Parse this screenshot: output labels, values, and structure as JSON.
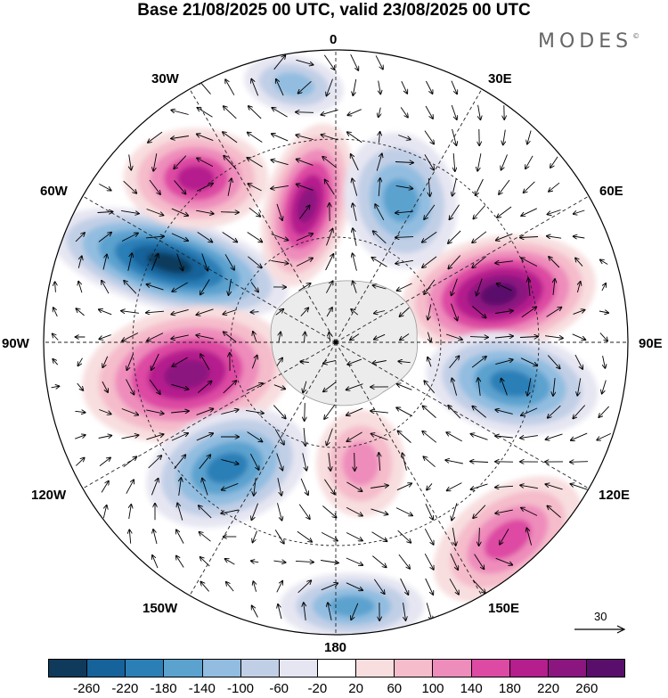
{
  "title": "Base 21/08/2025 00 UTC, valid 23/08/2025 00 UTC",
  "brand": {
    "name": "MODES",
    "mark": "©"
  },
  "longitude_labels": {
    "lon_0": "0",
    "lon_30e": "30E",
    "lon_60e": "60E",
    "lon_90e": "90E",
    "lon_120e": "120E",
    "lon_150e": "150E",
    "lon_180": "180",
    "lon_150w": "150W",
    "lon_120w": "120W",
    "lon_90w": "90W",
    "lon_60w": "60W",
    "lon_30w": "30W"
  },
  "reference_vector": {
    "label": "30"
  },
  "colorbar": {
    "colors": [
      "#0f3a5c",
      "#16629a",
      "#2b7fb7",
      "#5ba2cf",
      "#92bde0",
      "#c1cfe6",
      "#e6e6f2",
      "#ffffff",
      "#f8dedf",
      "#f5bccb",
      "#ee8cbb",
      "#dd4aa3",
      "#b51e8d",
      "#8c1680",
      "#5a0e6b"
    ],
    "tick_labels": [
      "-260",
      "-220",
      "-180",
      "-140",
      "-100",
      "-60",
      "-20",
      "20",
      "60",
      "100",
      "140",
      "180",
      "220",
      "260"
    ]
  },
  "map_data": {
    "projection": "south polar stereographic",
    "field_units_range": [
      -260,
      260
    ],
    "anomaly_centers": [
      {
        "name": "blue-low-west-antarctica-90w",
        "value": -260
      },
      {
        "name": "magenta-high-90w-south",
        "value": 240
      },
      {
        "name": "magenta-high-30w",
        "value": 220
      },
      {
        "name": "magenta-high-60w",
        "value": 180
      },
      {
        "name": "blue-low-20e",
        "value": -140
      },
      {
        "name": "blue-low-30w-north",
        "value": -100
      },
      {
        "name": "magenta-high-70e",
        "value": 260
      },
      {
        "name": "blue-low-100e",
        "value": -180
      },
      {
        "name": "blue-low-120w",
        "value": -180
      },
      {
        "name": "pink-high-170w",
        "value": 120
      },
      {
        "name": "pink-high-150e",
        "value": 140
      },
      {
        "name": "blue-low-180",
        "value": -140
      }
    ]
  }
}
